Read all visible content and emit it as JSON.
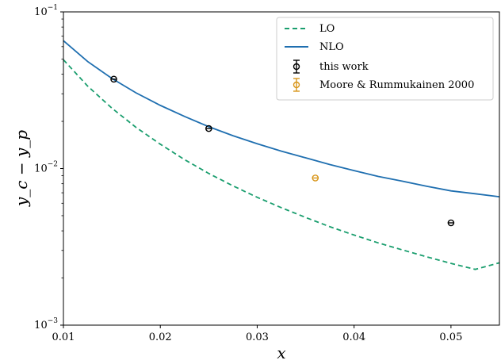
{
  "chart_data": {
    "type": "line",
    "title": "",
    "xlabel": "x",
    "ylabel": "y_c − y_p",
    "xlim": [
      0.01,
      0.055
    ],
    "ylim": [
      0.001,
      0.1
    ],
    "yscale": "log",
    "grid": false,
    "legend_position": "top-right",
    "x_ticks": [
      {
        "value": 0.01,
        "label": "0.01"
      },
      {
        "value": 0.02,
        "label": "0.02"
      },
      {
        "value": 0.03,
        "label": "0.03"
      },
      {
        "value": 0.04,
        "label": "0.04"
      },
      {
        "value": 0.05,
        "label": "0.05"
      }
    ],
    "y_ticks": [
      {
        "value": 0.001,
        "base": "10",
        "exp": "−3"
      },
      {
        "value": 0.01,
        "base": "10",
        "exp": "−2"
      },
      {
        "value": 0.1,
        "base": "10",
        "exp": "−1"
      }
    ],
    "series": [
      {
        "name": "LO",
        "style": "dashed",
        "color": "#1a9e6e",
        "x": [
          0.01,
          0.0125,
          0.015,
          0.0175,
          0.02,
          0.0225,
          0.025,
          0.0275,
          0.03,
          0.0325,
          0.035,
          0.0375,
          0.04,
          0.0425,
          0.045,
          0.0475,
          0.05,
          0.0525,
          0.055
        ],
        "y": [
          0.0495,
          0.0336,
          0.0243,
          0.0183,
          0.0143,
          0.0114,
          0.0093,
          0.00775,
          0.00655,
          0.00562,
          0.00487,
          0.00425,
          0.00376,
          0.00335,
          0.00302,
          0.00273,
          0.00248,
          0.00227,
          0.0025
        ]
      },
      {
        "name": "NLO",
        "style": "solid",
        "color": "#1f6fb0",
        "x": [
          0.01,
          0.0125,
          0.015,
          0.0175,
          0.02,
          0.0225,
          0.025,
          0.0275,
          0.03,
          0.0325,
          0.035,
          0.0375,
          0.04,
          0.0425,
          0.045,
          0.0475,
          0.05,
          0.0525,
          0.055
        ],
        "y": [
          0.0655,
          0.0482,
          0.0376,
          0.0304,
          0.0253,
          0.0215,
          0.0185,
          0.0162,
          0.0144,
          0.0129,
          0.0117,
          0.0106,
          0.0097,
          0.0089,
          0.0083,
          0.0077,
          0.0072,
          0.0069,
          0.0066
        ]
      },
      {
        "name": "this work",
        "style": "points",
        "color": "#000000",
        "x": [
          0.0152,
          0.025,
          0.05
        ],
        "y": [
          0.0372,
          0.018,
          0.0045
        ]
      },
      {
        "name": "Moore & Rummukainen 2000",
        "style": "points",
        "color": "#d8961b",
        "x": [
          0.036
        ],
        "y": [
          0.0087
        ]
      }
    ]
  }
}
